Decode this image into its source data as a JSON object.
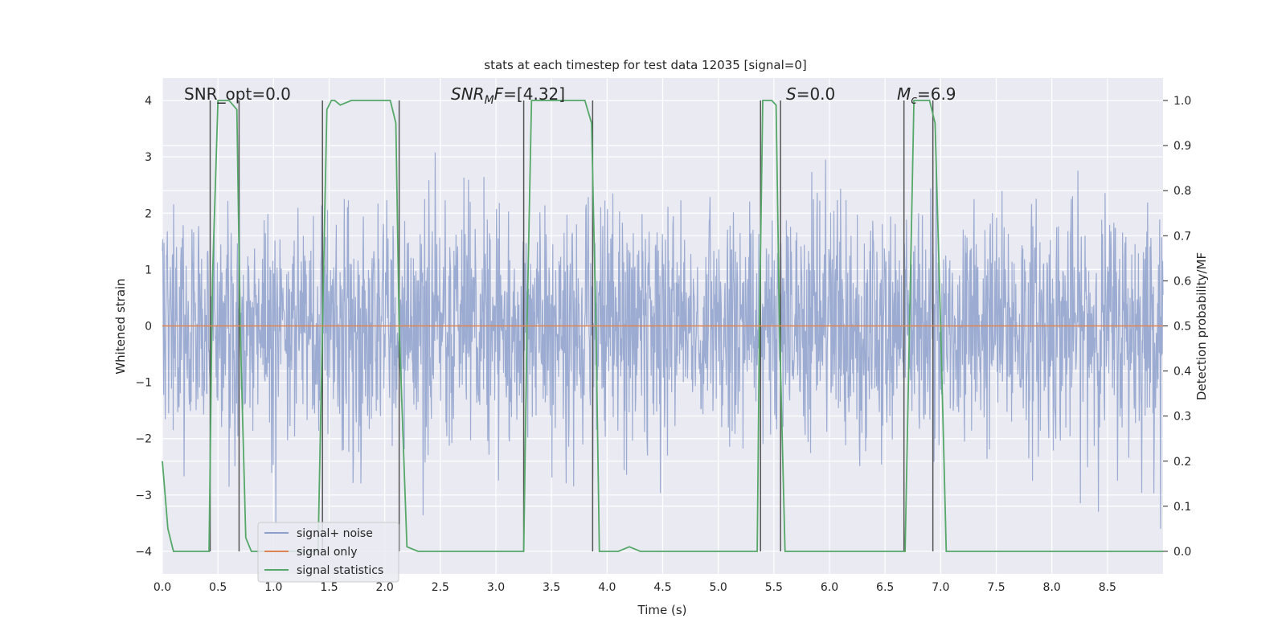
{
  "chart_data": {
    "type": "line",
    "title": "stats at each timestep for test data 12035 [signal=0]",
    "xlabel": "Time (s)",
    "ylabel": "Whitened strain",
    "y2label": "Detection probability/MF",
    "xlim": [
      0,
      9.0
    ],
    "ylim": [
      -4.4,
      4.4
    ],
    "y2lim": [
      -0.05,
      1.05
    ],
    "xticks": [
      "0.0",
      "0.5",
      "1.0",
      "1.5",
      "2.0",
      "2.5",
      "3.0",
      "3.5",
      "4.0",
      "4.5",
      "5.0",
      "5.5",
      "6.0",
      "6.5",
      "7.0",
      "7.5",
      "8.0",
      "8.5"
    ],
    "yticks": [
      "4",
      "3",
      "2",
      "1",
      "0",
      "−1",
      "−2",
      "−3",
      "−4"
    ],
    "y2ticks": [
      "1.0",
      "0.9",
      "0.8",
      "0.7",
      "0.6",
      "0.5",
      "0.4",
      "0.3",
      "0.2",
      "0.1",
      "0.0"
    ],
    "grid": true,
    "legend_position": "lower-left",
    "annotations": [
      "SNR_opt=0.0",
      "SNR_MF=[4.32]",
      "S=0.0",
      "M_c=6.9"
    ],
    "series": [
      {
        "name": "signal+ noise",
        "color": "#8da0cb",
        "description_range": [
          -3.6,
          3.6
        ],
        "note": "dense whitened noise, mostly within ±2 with spikes to ±3.5"
      },
      {
        "name": "signal only",
        "color": "#dd8452",
        "values_constant": 0.0
      },
      {
        "name": "signal statistics",
        "color": "#55a868",
        "axis": "right",
        "x": [
          0.0,
          0.05,
          0.1,
          0.2,
          0.3,
          0.42,
          0.45,
          0.5,
          0.6,
          0.67,
          0.7,
          0.75,
          0.8,
          0.85,
          1.0,
          1.2,
          1.4,
          1.44,
          1.48,
          1.52,
          1.55,
          1.6,
          1.7,
          1.75,
          1.85,
          2.0,
          2.05,
          2.1,
          2.13,
          2.2,
          2.3,
          2.5,
          3.0,
          3.25,
          3.28,
          3.32,
          3.5,
          3.8,
          3.86,
          3.9,
          3.93,
          4.0,
          4.1,
          4.2,
          4.3,
          4.5,
          5.0,
          5.35,
          5.37,
          5.4,
          5.48,
          5.52,
          5.55,
          5.6,
          6.0,
          6.5,
          6.68,
          6.72,
          6.76,
          6.8,
          6.9,
          6.95,
          7.0,
          7.05,
          7.2,
          8.0,
          9.0
        ],
        "y": [
          0.2,
          0.05,
          0.0,
          0.0,
          0.0,
          0.0,
          0.6,
          1.0,
          1.0,
          0.98,
          0.5,
          0.03,
          0.0,
          0.0,
          0.0,
          0.0,
          0.0,
          0.5,
          0.98,
          1.0,
          1.0,
          0.99,
          1.0,
          1.0,
          1.0,
          1.0,
          1.0,
          0.95,
          0.5,
          0.01,
          0.0,
          0.0,
          0.0,
          0.0,
          0.5,
          1.0,
          1.0,
          1.0,
          0.95,
          0.5,
          0.0,
          0.0,
          0.0,
          0.01,
          0.0,
          0.0,
          0.0,
          0.0,
          0.5,
          1.0,
          1.0,
          0.99,
          0.5,
          0.0,
          0.0,
          0.0,
          0.0,
          0.5,
          1.0,
          1.0,
          1.0,
          0.95,
          0.5,
          0.0,
          0.0,
          0.0,
          0.0
        ]
      },
      {
        "name": "",
        "color": "#555555",
        "type": "vertical-lines",
        "x": [
          0.43,
          0.69,
          1.44,
          2.13,
          3.25,
          3.87,
          5.38,
          5.56,
          6.67,
          6.93
        ]
      }
    ]
  }
}
